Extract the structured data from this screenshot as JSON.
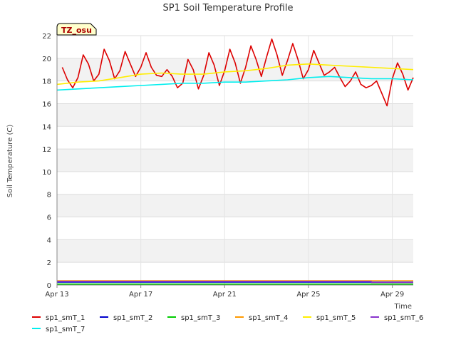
{
  "chart_data": {
    "type": "line",
    "title": "SP1 Soil Temperature Profile",
    "xlabel": "Time",
    "ylabel": "Soil Temperature (C)",
    "badge": "TZ_osu",
    "xlim": [
      "2023-04-13",
      "2023-04-30"
    ],
    "ylim": [
      0,
      22
    ],
    "yticks": [
      0,
      2,
      4,
      6,
      8,
      10,
      12,
      14,
      16,
      18,
      20,
      22
    ],
    "xticks": [
      {
        "date": "2023-04-13",
        "label": "Apr 13"
      },
      {
        "date": "2023-04-17",
        "label": "Apr 17"
      },
      {
        "date": "2023-04-21",
        "label": "Apr 21"
      },
      {
        "date": "2023-04-25",
        "label": "Apr 25"
      },
      {
        "date": "2023-04-29",
        "label": "Apr 29"
      }
    ],
    "grid": true,
    "legend_position": "bottom",
    "series": [
      {
        "name": "sp1_smT_1",
        "color": "#dd0000",
        "x": [
          "2023-04-13 06:00",
          "2023-04-13 12:00",
          "2023-04-13 18:00",
          "2023-04-14 00:00",
          "2023-04-14 06:00",
          "2023-04-14 12:00",
          "2023-04-14 18:00",
          "2023-04-15 00:00",
          "2023-04-15 06:00",
          "2023-04-15 12:00",
          "2023-04-15 18:00",
          "2023-04-16 00:00",
          "2023-04-16 06:00",
          "2023-04-16 12:00",
          "2023-04-16 18:00",
          "2023-04-17 00:00",
          "2023-04-17 06:00",
          "2023-04-17 12:00",
          "2023-04-17 18:00",
          "2023-04-18 00:00",
          "2023-04-18 06:00",
          "2023-04-18 12:00",
          "2023-04-18 18:00",
          "2023-04-19 00:00",
          "2023-04-19 06:00",
          "2023-04-19 12:00",
          "2023-04-19 18:00",
          "2023-04-20 00:00",
          "2023-04-20 06:00",
          "2023-04-20 12:00",
          "2023-04-20 18:00",
          "2023-04-21 00:00",
          "2023-04-21 06:00",
          "2023-04-21 12:00",
          "2023-04-21 18:00",
          "2023-04-22 00:00",
          "2023-04-22 06:00",
          "2023-04-22 12:00",
          "2023-04-22 18:00",
          "2023-04-23 00:00",
          "2023-04-23 06:00",
          "2023-04-23 12:00",
          "2023-04-23 18:00",
          "2023-04-24 00:00",
          "2023-04-24 06:00",
          "2023-04-24 12:00",
          "2023-04-24 18:00",
          "2023-04-25 00:00",
          "2023-04-25 06:00",
          "2023-04-25 12:00",
          "2023-04-25 18:00",
          "2023-04-26 00:00",
          "2023-04-26 06:00",
          "2023-04-26 12:00",
          "2023-04-26 18:00",
          "2023-04-27 00:00",
          "2023-04-27 06:00",
          "2023-04-27 12:00",
          "2023-04-27 18:00",
          "2023-04-28 00:00",
          "2023-04-28 06:00",
          "2023-04-28 12:00",
          "2023-04-28 18:00",
          "2023-04-29 00:00",
          "2023-04-29 06:00",
          "2023-04-29 12:00",
          "2023-04-29 18:00",
          "2023-04-30 00:00"
        ],
        "y": [
          19.2,
          18.1,
          17.4,
          18.3,
          20.3,
          19.5,
          18.0,
          18.6,
          20.8,
          19.8,
          18.2,
          18.9,
          20.6,
          19.5,
          18.4,
          19.2,
          20.5,
          19.2,
          18.5,
          18.4,
          19.0,
          18.4,
          17.4,
          17.8,
          19.9,
          19.0,
          17.3,
          18.5,
          20.5,
          19.4,
          17.6,
          18.9,
          20.8,
          19.6,
          17.8,
          19.2,
          21.1,
          19.9,
          18.4,
          20.1,
          21.7,
          20.3,
          18.5,
          19.8,
          21.3,
          19.9,
          18.2,
          19.0,
          20.7,
          19.6,
          18.5,
          18.8,
          19.2,
          18.3,
          17.5,
          18.0,
          18.8,
          17.7,
          17.4,
          17.6,
          18.0,
          16.9,
          15.8,
          18.2,
          19.6,
          18.6,
          17.2,
          18.3
        ]
      },
      {
        "name": "sp1_smT_2",
        "color": "#0000cc",
        "x": [
          "2023-04-13",
          "2023-04-30"
        ],
        "y": [
          0.25,
          0.25
        ]
      },
      {
        "name": "sp1_smT_3",
        "color": "#00cc00",
        "x": [
          "2023-04-13",
          "2023-04-30"
        ],
        "y": [
          0.08,
          0.08
        ]
      },
      {
        "name": "sp1_smT_4",
        "color": "#ff9900",
        "x": [
          "2023-04-13",
          "2023-04-30"
        ],
        "y": [
          0.38,
          0.38
        ]
      },
      {
        "name": "sp1_smT_5",
        "color": "#ffee00",
        "x": [
          "2023-04-13",
          "2023-04-14",
          "2023-04-15",
          "2023-04-16",
          "2023-04-17",
          "2023-04-18",
          "2023-04-19",
          "2023-04-20",
          "2023-04-21",
          "2023-04-22",
          "2023-04-23",
          "2023-04-24",
          "2023-04-25",
          "2023-04-26",
          "2023-04-27",
          "2023-04-28",
          "2023-04-29",
          "2023-04-30"
        ],
        "y": [
          17.7,
          17.9,
          18.0,
          18.3,
          18.6,
          18.7,
          18.6,
          18.6,
          18.8,
          18.9,
          19.1,
          19.4,
          19.5,
          19.4,
          19.3,
          19.2,
          19.1,
          19.0
        ]
      },
      {
        "name": "sp1_smT_6",
        "color": "#8833cc",
        "x": [
          "2023-04-13",
          "2023-04-28",
          "2023-04-28 00:01",
          "2023-04-30"
        ],
        "y": [
          0.32,
          0.32,
          0.22,
          0.22
        ]
      },
      {
        "name": "sp1_smT_7",
        "color": "#00eeee",
        "x": [
          "2023-04-13",
          "2023-04-14",
          "2023-04-15",
          "2023-04-16",
          "2023-04-17",
          "2023-04-18",
          "2023-04-19",
          "2023-04-20",
          "2023-04-21",
          "2023-04-22",
          "2023-04-23",
          "2023-04-24",
          "2023-04-25",
          "2023-04-26",
          "2023-04-27",
          "2023-04-28",
          "2023-04-29",
          "2023-04-30"
        ],
        "y": [
          17.2,
          17.3,
          17.4,
          17.5,
          17.6,
          17.7,
          17.8,
          17.8,
          17.9,
          17.9,
          18.0,
          18.1,
          18.3,
          18.4,
          18.3,
          18.2,
          18.2,
          18.1
        ]
      }
    ]
  }
}
